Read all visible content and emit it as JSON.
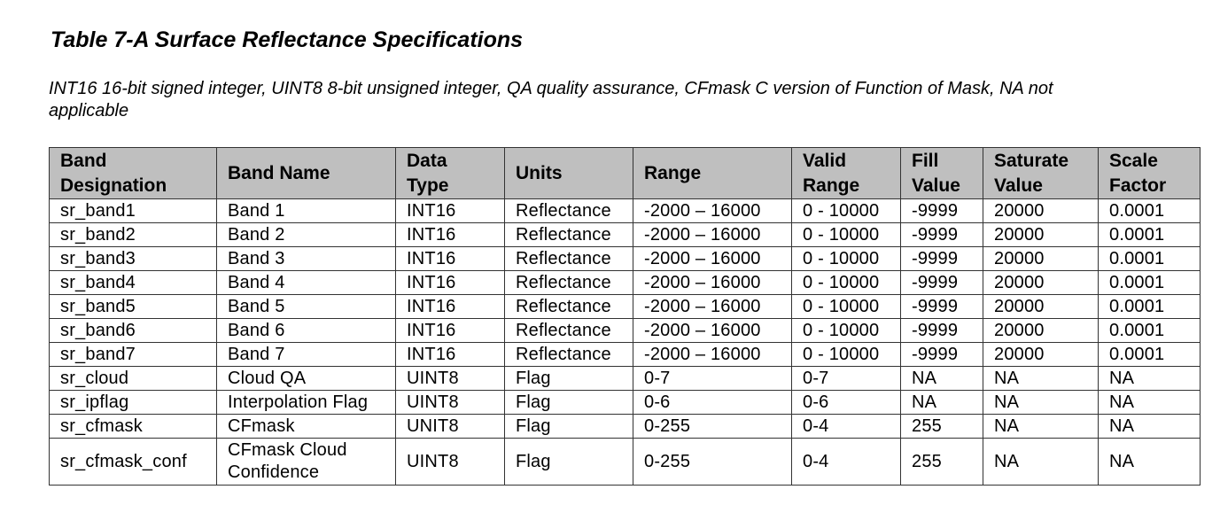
{
  "title": "Table 7-A Surface Reflectance Specifications",
  "caption": "INT16 16-bit signed integer, UINT8 8-bit unsigned integer, QA quality assurance, CFmask C version of Function of Mask, NA not applicable",
  "table": {
    "headers": [
      "Band Designation",
      "Band Name",
      "Data Type",
      "Units",
      "Range",
      "Valid Range",
      "Fill Value",
      "Saturate Value",
      "Scale Factor"
    ],
    "rows": [
      [
        "sr_band1",
        "Band 1",
        "INT16",
        "Reflectance",
        "-2000 – 16000",
        "0 - 10000",
        "-9999",
        "20000",
        "0.0001"
      ],
      [
        "sr_band2",
        "Band 2",
        "INT16",
        "Reflectance",
        "-2000 – 16000",
        "0 - 10000",
        "-9999",
        "20000",
        "0.0001"
      ],
      [
        "sr_band3",
        "Band 3",
        "INT16",
        "Reflectance",
        "-2000 – 16000",
        "0 - 10000",
        "-9999",
        "20000",
        "0.0001"
      ],
      [
        "sr_band4",
        "Band 4",
        "INT16",
        "Reflectance",
        "-2000 – 16000",
        "0 - 10000",
        "-9999",
        "20000",
        "0.0001"
      ],
      [
        "sr_band5",
        "Band 5",
        "INT16",
        "Reflectance",
        "-2000 – 16000",
        "0 - 10000",
        "-9999",
        "20000",
        "0.0001"
      ],
      [
        "sr_band6",
        "Band 6",
        "INT16",
        "Reflectance",
        "-2000 – 16000",
        "0 - 10000",
        "-9999",
        "20000",
        "0.0001"
      ],
      [
        "sr_band7",
        "Band 7",
        "INT16",
        "Reflectance",
        "-2000 – 16000",
        "0 - 10000",
        "-9999",
        "20000",
        "0.0001"
      ],
      [
        "sr_cloud",
        "Cloud QA",
        "UINT8",
        "Flag",
        "0-7",
        "0-7",
        "NA",
        "NA",
        "NA"
      ],
      [
        "sr_ipflag",
        "Interpolation Flag",
        "UINT8",
        "Flag",
        "0-6",
        "0-6",
        "NA",
        "NA",
        "NA"
      ],
      [
        "sr_cfmask",
        "CFmask",
        "UNIT8",
        "Flag",
        "0-255",
        "0-4",
        "255",
        "NA",
        "NA"
      ],
      [
        "sr_cfmask_conf",
        "CFmask Cloud Confidence",
        "UINT8",
        "Flag",
        "0-255",
        "0-4",
        "255",
        "NA",
        "NA"
      ]
    ]
  },
  "colors": {
    "header_background": "#bfbfbf",
    "border": "#333333",
    "text": "#000000"
  }
}
